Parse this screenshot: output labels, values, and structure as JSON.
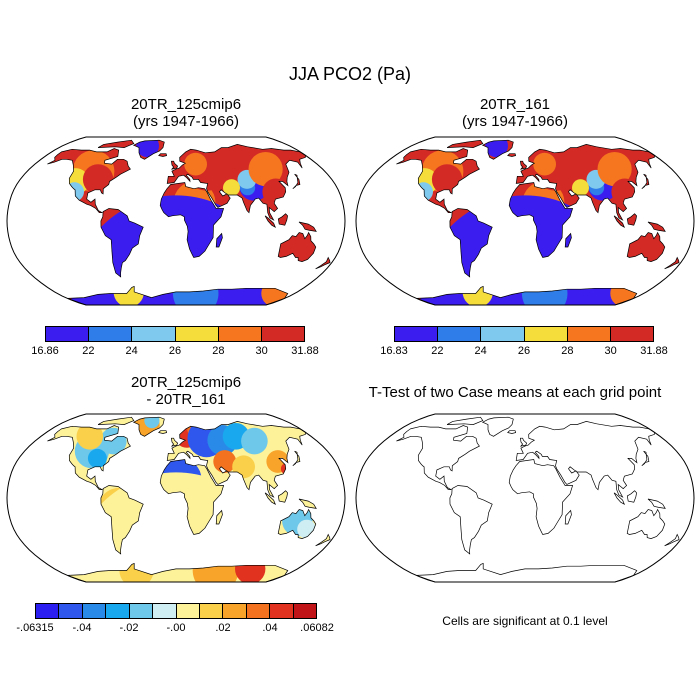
{
  "title": "JJA PCO2 (Pa)",
  "panels": [
    {
      "id": "case1",
      "title_line1": "20TR_125cmip6",
      "title_line2": "(yrs 1947-1966)",
      "colorbar": {
        "labels": [
          "16.86",
          "22",
          "24",
          "26",
          "28",
          "30",
          "31.88"
        ],
        "colors": [
          "#3b1df0",
          "#2e7de8",
          "#7fc8ee",
          "#f5de3c",
          "#f5761f",
          "#d42a26"
        ]
      }
    },
    {
      "id": "case2",
      "title_line1": "20TR_161",
      "title_line2": "(yrs 1947-1966)",
      "colorbar": {
        "labels": [
          "16.83",
          "22",
          "24",
          "26",
          "28",
          "30",
          "31.88"
        ],
        "colors": [
          "#3b1df0",
          "#2e7de8",
          "#7fc8ee",
          "#f5de3c",
          "#f5761f",
          "#d42a26"
        ]
      }
    },
    {
      "id": "difference",
      "title_line1": "20TR_125cmip6",
      "title_line2": "- 20TR_161",
      "colorbar": {
        "labels": [
          "-.06315",
          "-.04",
          "-.02",
          "-.00",
          ".02",
          ".04",
          ".06082"
        ],
        "label_positions": [
          0,
          2,
          4,
          6,
          8,
          10,
          12
        ],
        "colors": [
          "#2a1ef0",
          "#2f57ee",
          "#2a8ae8",
          "#19a8ee",
          "#6ec8ea",
          "#cfeef3",
          "#fdf199",
          "#fad04a",
          "#f8a32a",
          "#f2721f",
          "#e0321e",
          "#c01418"
        ]
      }
    },
    {
      "id": "ttest",
      "title_line1": "T-Test of two Case means at each grid point",
      "note": "Cells are significant at 0.1 level"
    }
  ]
}
